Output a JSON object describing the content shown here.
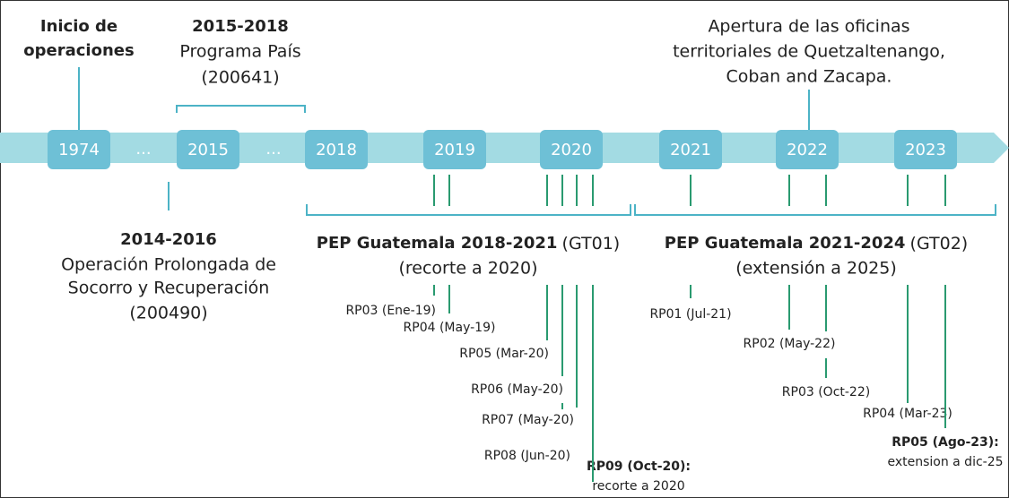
{
  "timeline": {
    "years": [
      "1974",
      "...",
      "2015",
      "...",
      "2018",
      "2019",
      "2020",
      "2021",
      "2022",
      "2023"
    ],
    "top_labels": [
      {
        "lines": [
          "Inicio de",
          "operaciones"
        ]
      },
      {
        "heading": "2015-2018",
        "lines": [
          "Programa País",
          "(200641)"
        ]
      },
      {
        "lines": [
          "Apertura de las oficinas",
          "territoriales de Quetzaltenango,",
          "Coban and Zacapa."
        ]
      }
    ],
    "bottom_labels": [
      {
        "heading": "2014-2016",
        "lines": [
          "Operación Prolongada de",
          "Socorro y Recuperación",
          "(200490)"
        ]
      }
    ],
    "programs": [
      {
        "name": "PEP Guatemala 2018-2021",
        "code": "(GT01)",
        "note": "(recorte a 2020)"
      },
      {
        "name": "PEP Guatemala 2021-2024",
        "code": "(GT02)",
        "note": "(extensión a 2025)"
      }
    ],
    "revisions": [
      {
        "label": "RP03 (Ene-19)"
      },
      {
        "label": "RP04 (May-19)"
      },
      {
        "label": "RP05 (Mar-20)"
      },
      {
        "label": "RP06 (May-20)"
      },
      {
        "label": "RP07 (May-20)"
      },
      {
        "label": "RP08 (Jun-20)"
      },
      {
        "label": "RP09 (Oct-20):",
        "note": "recorte a 2020"
      },
      {
        "label": "RP01 (Jul-21)"
      },
      {
        "label": "RP02 (May-22)"
      },
      {
        "label": "RP03 (Oct-22)"
      },
      {
        "label": "RP04 (Mar-23)"
      },
      {
        "label": "RP05 (Ago-23):",
        "note": "extension a dic-25"
      }
    ]
  }
}
